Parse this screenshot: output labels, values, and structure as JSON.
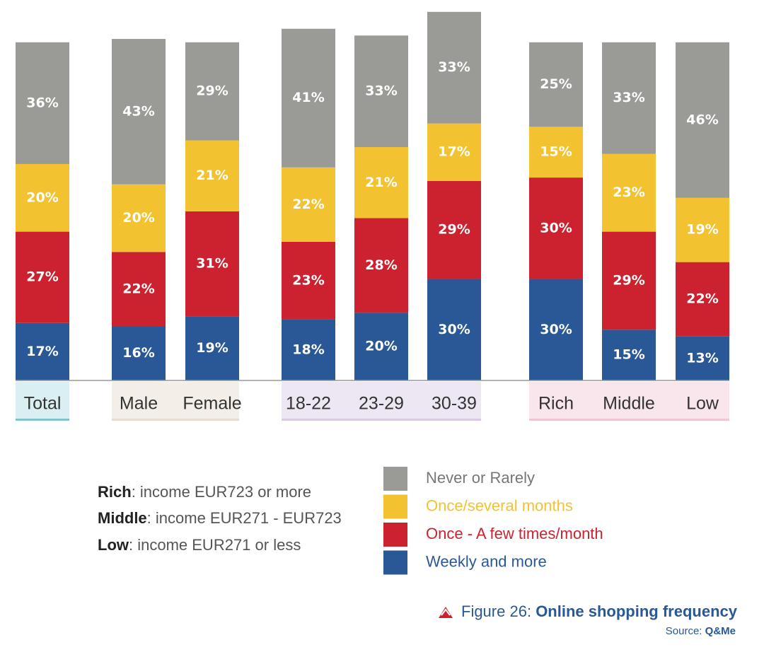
{
  "chart_data": {
    "type": "stacked_bar",
    "categories": [
      "Total",
      "Male",
      "Female",
      "18-22",
      "23-29",
      "30-39",
      "Rich",
      "Middle",
      "Low"
    ],
    "ylim": [
      0,
      110
    ],
    "series": [
      {
        "name": "Weekly and more",
        "color": "#2a5896",
        "values": [
          17,
          16,
          19,
          18,
          20,
          30,
          30,
          15,
          13
        ],
        "value_labels": [
          "17%",
          "16%",
          "19%",
          "18%",
          "20%",
          "30%",
          "30%",
          "15%",
          "13%"
        ]
      },
      {
        "name": "Once - A few times/month",
        "color": "#cc2230",
        "values": [
          27,
          22,
          31,
          23,
          28,
          29,
          30,
          29,
          22
        ],
        "value_labels": [
          "27%",
          "22%",
          "31%",
          "23%",
          "28%",
          "29%",
          "30%",
          "29%",
          "22%"
        ]
      },
      {
        "name": "Once/several months",
        "color": "#f2c230",
        "values": [
          20,
          20,
          21,
          22,
          21,
          17,
          15,
          23,
          19
        ],
        "value_labels": [
          "20%",
          "20%",
          "21%",
          "22%",
          "21%",
          "17%",
          "15%",
          "23%",
          "19%"
        ]
      },
      {
        "name": "Never or Rarely",
        "color": "#9a9a96",
        "values": [
          36,
          43,
          29,
          41,
          33,
          33,
          25,
          33,
          46
        ],
        "value_labels": [
          "36%",
          "43%",
          "29%",
          "41%",
          "33%",
          "33%",
          "25%",
          "33%",
          "46%"
        ]
      }
    ],
    "notes": [
      {
        "term": "Rich",
        "text": ": income EUR723 or more"
      },
      {
        "term": "Middle",
        "text": ": income EUR271 - EUR723"
      },
      {
        "term": "Low",
        "text": ": income EUR271 or less"
      }
    ],
    "caption": {
      "prefix": "Figure 26:",
      "title": "Online shopping frequency"
    },
    "source": {
      "label": "Source:",
      "name": "Q&Me"
    }
  }
}
